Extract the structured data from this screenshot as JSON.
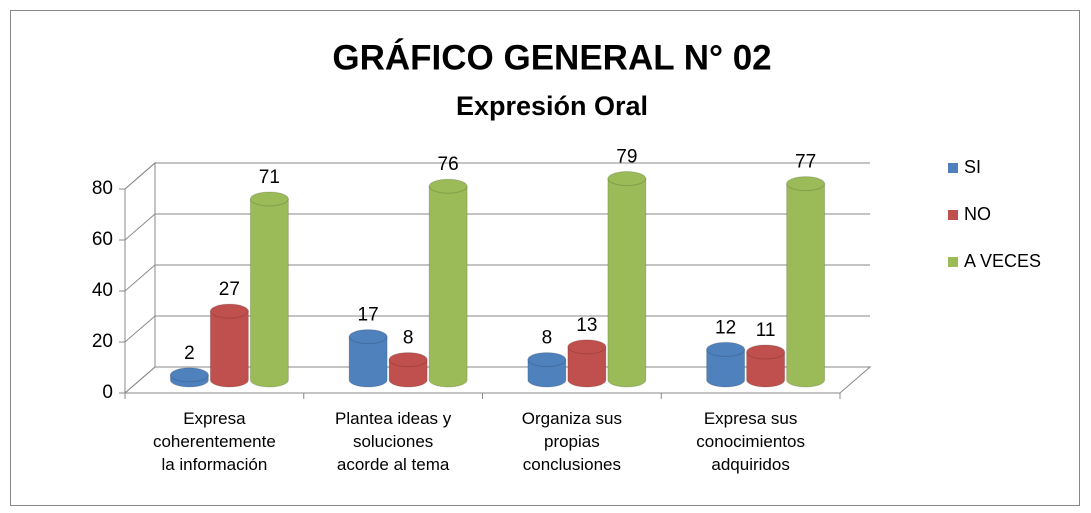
{
  "chart_data": {
    "type": "bar3d",
    "title": "GRÁFICO GENERAL N° 02",
    "subtitle": "Expresión Oral",
    "categories": [
      "Expresa\ncoherentemente\nla información",
      "Plantea ideas y\nsoluciones\nacorde al tema",
      "Organiza sus\npropias\nconclusiones",
      "Expresa sus\nconocimientos\nadquiridos"
    ],
    "series": [
      {
        "name": "SI",
        "color": "#4F81BD",
        "values": [
          2,
          17,
          8,
          12
        ]
      },
      {
        "name": "NO",
        "color": "#C0504D",
        "values": [
          27,
          8,
          13,
          11
        ]
      },
      {
        "name": "A VECES",
        "color": "#9BBB59",
        "values": [
          71,
          76,
          79,
          77
        ]
      }
    ],
    "ylim": [
      0,
      80
    ],
    "yticks": [
      0,
      20,
      40,
      60,
      80
    ],
    "grid": true,
    "legend": "right"
  }
}
